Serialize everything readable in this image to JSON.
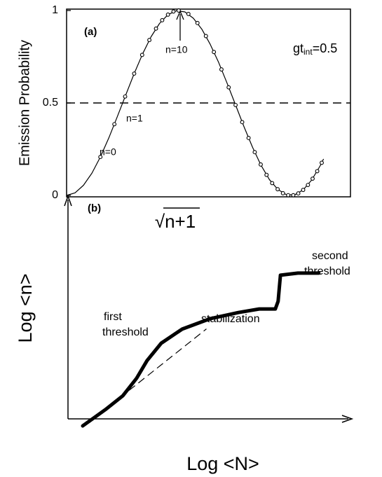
{
  "chart_data": [
    {
      "type": "line",
      "panel_label": "(a)",
      "ylabel": "Emission Probability",
      "xlabel": "√n+1",
      "parameter": {
        "base": "gt",
        "sub": "int",
        "rest": "=0.5"
      },
      "annotations": [
        "n=0",
        "n=1",
        "n=10"
      ],
      "xlim": [
        0,
        8.4
      ],
      "ylim": [
        0,
        1
      ],
      "yticks": [
        0,
        0.5,
        1
      ],
      "reference_line": 0.5,
      "color": "#000000",
      "series": [
        {
          "mode": "line",
          "width": 1.2,
          "x": [
            0,
            0.25,
            0.5,
            0.75,
            1,
            1.25,
            1.5,
            1.75,
            2,
            2.25,
            2.5,
            2.75,
            3,
            3.25,
            3.5,
            3.75,
            4,
            4.25,
            4.5,
            4.75,
            5,
            5.25,
            5.5,
            5.75,
            6,
            6.25,
            6.5,
            6.75,
            7,
            7.25,
            7.5,
            7.6
          ],
          "values": [
            0,
            0.0139,
            0.055,
            0.1209,
            0.208,
            0.3114,
            0.4253,
            0.5433,
            0.6589,
            0.7658,
            0.8578,
            0.9299,
            0.9777,
            0.999,
            0.9924,
            0.9584,
            0.8991,
            0.8176,
            0.7184,
            0.6067,
            0.489,
            0.3717,
            0.2614,
            0.1643,
            0.0861,
            0.0327,
            0.004,
            0.003,
            0.0298,
            0.0828,
            0.159,
            0.1954
          ]
        },
        {
          "mode": "markers",
          "x": [
            1,
            1.4142,
            1.7321,
            2,
            2.2361,
            2.4495,
            2.6458,
            2.8284,
            3,
            3.1623,
            3.3166,
            3.6056,
            3.873,
            4.1231,
            4.3589,
            4.5826,
            4.7958,
            5,
            5.1962,
            5.3852,
            5.5678,
            5.7446,
            5.9161,
            6.0828,
            6.245,
            6.4031,
            6.5574,
            6.7082,
            6.8557,
            7,
            7.1414,
            7.2801,
            7.4162,
            7.5498
          ],
          "values": [
            0.208,
            0.3853,
            0.5349,
            0.6589,
            0.7599,
            0.8405,
            0.9023,
            0.9475,
            0.9777,
            0.9946,
            1,
            0.9813,
            0.9324,
            0.8617,
            0.7756,
            0.6813,
            0.5846,
            0.489,
            0.3964,
            0.3107,
            0.234,
            0.1671,
            0.1112,
            0.0666,
            0.0336,
            0.0119,
            0.0013,
            0.0012,
            0.011,
            0.0298,
            0.0567,
            0.0907,
            0.1311,
            0.1766
          ]
        }
      ]
    },
    {
      "type": "line",
      "panel_label": "(b)",
      "ylabel": "Log <n>",
      "xlabel": "Log <N>",
      "annotations": [
        [
          "first",
          "threshold"
        ],
        [
          "stabilization"
        ],
        [
          "second",
          "threshold"
        ]
      ],
      "xlim": [
        0,
        100
      ],
      "ylim": [
        0,
        100
      ],
      "color": "#000000",
      "series": [
        {
          "mode": "line",
          "width": 5,
          "x": [
            5.2,
            13.2,
            19.4,
            24.3,
            28.0,
            33.0,
            40.4,
            50.4,
            60.3,
            67.7,
            73.4,
            74.4,
            75.2,
            81.4,
            88.8
          ],
          "values": [
            2.1,
            9.0,
            14.9,
            22.4,
            29.9,
            37.3,
            43.3,
            47.8,
            50.4,
            51.9,
            51.9,
            55.2,
            66.3,
            67.2,
            67.2
          ]
        },
        {
          "mode": "line",
          "width": 1.2,
          "dash": true,
          "x": [
            5.2,
            48.9
          ],
          "values": [
            1.5,
            43.3
          ]
        }
      ]
    }
  ]
}
